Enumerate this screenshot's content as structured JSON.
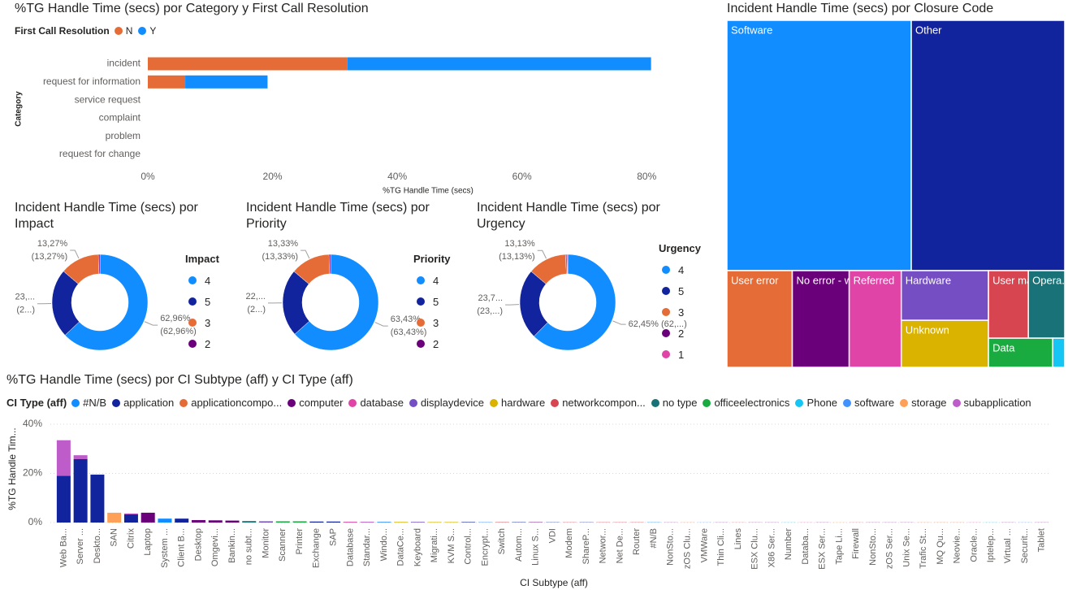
{
  "chart_data": [
    {
      "type": "bar",
      "title": "%TG Handle Time (secs) por Category y First Call Resolution",
      "legend_title": "First Call Resolution",
      "categories": [
        "incident",
        "request for information",
        "service request",
        "complaint",
        "problem",
        "request for change"
      ],
      "series": [
        {
          "name": "N",
          "color": "#e66c37",
          "values": [
            32.0,
            6.0,
            0,
            0,
            0,
            0
          ]
        },
        {
          "name": "Y",
          "color": "#118dff",
          "values": [
            48.7,
            13.2,
            0,
            0,
            0,
            0
          ]
        }
      ],
      "xlim": [
        0,
        87
      ],
      "xticks": [
        {
          "value": 0,
          "label": "0%"
        },
        {
          "value": 20,
          "label": "20%"
        },
        {
          "value": 40,
          "label": "40%"
        },
        {
          "value": 60,
          "label": "60%"
        },
        {
          "value": 80,
          "label": "80%"
        }
      ],
      "x_label": "%TG Handle Time (secs)",
      "y_label": "Category"
    },
    {
      "type": "treemap",
      "title": "Incident Handle Time (secs) por Closure Code",
      "categories": [
        "Software",
        "Other",
        "User error",
        "No error - works as d...",
        "Referred",
        "Hardware",
        "Unknown",
        "User manu...",
        "Opera...",
        "Data",
        null
      ],
      "values": [
        39.4,
        32.8,
        5.4,
        4.7,
        4.3,
        3.7,
        3.5,
        2.3,
        2.1,
        1.6,
        0.3
      ],
      "colors": [
        "#118dff",
        "#12239e",
        "#e66c37",
        "#6b007b",
        "#e044a7",
        "#744ec2",
        "#d9b300",
        "#d64550",
        "#197278",
        "#1aab40",
        "#15c6f4"
      ]
    },
    {
      "type": "donut",
      "title": "Incident Handle Time (secs) por Impact",
      "legend_title": "Impact",
      "categories": [
        "4",
        "5",
        "3",
        "2"
      ],
      "values": [
        62.96,
        23.27,
        13.27,
        0.5
      ],
      "value_labels": [
        "62,96%",
        "23,...",
        "13,27%",
        null
      ],
      "value_labels_2": [
        "(62,96%)",
        "(2...)",
        "(13,27%)",
        null
      ],
      "colors": [
        "#118dff",
        "#12239e",
        "#e66c37",
        "#6b007b"
      ]
    },
    {
      "type": "donut",
      "title": "Incident Handle Time (secs) por Priority",
      "legend_title": "Priority",
      "categories": [
        "4",
        "5",
        "3",
        "2"
      ],
      "values": [
        63.43,
        22.74,
        13.33,
        0.5
      ],
      "value_labels": [
        "63,43%",
        "22,...",
        "13,33%",
        null
      ],
      "value_labels_2": [
        "(63,43%)",
        "(2...)",
        "(13,33%)",
        null
      ],
      "colors": [
        "#118dff",
        "#12239e",
        "#e66c37",
        "#6b007b"
      ]
    },
    {
      "type": "donut",
      "title": "Incident Handle Time (secs) por Urgency",
      "legend_title": "Urgency",
      "categories": [
        "4",
        "5",
        "3",
        "2",
        "1"
      ],
      "values": [
        62.45,
        23.72,
        13.13,
        0.4,
        0.3
      ],
      "value_labels": [
        "62,45% (62,...)",
        "23,7...",
        "13,13%",
        null,
        null
      ],
      "value_labels_2": [
        null,
        "(23,...)",
        "(13,13%)",
        null,
        null
      ],
      "colors": [
        "#118dff",
        "#12239e",
        "#e66c37",
        "#6b007b",
        "#e044a7"
      ]
    },
    {
      "type": "column",
      "title": "%TG Handle Time (secs) por CI Subtype (aff) y CI Type (aff)",
      "legend_title": "CI Type (aff)",
      "categories": [
        "Web Ba...",
        "Server ...",
        "Deskto...",
        "SAN",
        "Citrix",
        "Laptop",
        "System ...",
        "Client B...",
        "Desktop",
        "Omgevi...",
        "Bankin...",
        "no subt...",
        "Monitor",
        "Scanner",
        "Printer",
        "Exchange",
        "SAP",
        "Database",
        "Standar...",
        "Windo...",
        "DataCe...",
        "Keyboard",
        "Migrati...",
        "KVM S...",
        "Control...",
        "Encrypt...",
        "Switch",
        "Autom...",
        "Linux S...",
        "VDI",
        "Modem",
        "ShareP...",
        "Networ...",
        "Net De...",
        "Router",
        "#N/B",
        "NonSto...",
        "zOS Clu...",
        "VMWare",
        "Thin Cli...",
        "Lines",
        "ESX Clu...",
        "X86 Ser...",
        "Number",
        "Databa...",
        "ESX Ser...",
        "Tape Li...",
        "Firewall",
        "NonSto...",
        "zOS Ser...",
        "Unix Se...",
        "Trafic St...",
        "MQ Qu...",
        "Neovie...",
        "Oracle...",
        "Iptelep...",
        "Virtual ...",
        "Securit...",
        "Tablet"
      ],
      "series": [
        {
          "name": "#N/B",
          "color": "#118dff",
          "values": [
            0,
            0,
            0,
            0,
            0,
            0,
            1.6,
            0,
            0,
            0,
            0,
            0,
            0,
            0,
            0,
            0,
            0,
            0,
            0,
            0,
            0,
            0,
            0,
            0,
            0,
            0,
            0,
            0,
            0,
            0,
            0,
            0,
            0,
            0,
            0,
            0.1,
            0,
            0,
            0,
            0,
            0,
            0,
            0,
            0,
            0,
            0,
            0,
            0,
            0,
            0,
            0,
            0,
            0,
            0,
            0,
            0,
            0,
            0,
            0
          ]
        },
        {
          "name": "application",
          "color": "#12239e",
          "values": [
            19,
            25.8,
            19.5,
            0,
            3.3,
            0,
            0,
            1.6,
            0,
            0,
            0,
            0,
            0,
            0,
            0,
            0.4,
            0.4,
            0,
            0,
            0,
            0,
            0,
            0,
            0,
            0.2,
            0,
            0,
            0.15,
            0,
            0.1,
            0,
            0.1,
            0,
            0,
            0,
            0,
            0,
            0,
            0,
            0,
            0,
            0,
            0,
            0,
            0,
            0,
            0,
            0,
            0,
            0,
            0,
            0,
            0,
            0,
            0,
            0,
            0,
            0,
            0
          ]
        },
        {
          "name": "applicationcompo...",
          "color": "#e66c37",
          "values": [
            0,
            0,
            0,
            0,
            0,
            0,
            0,
            0,
            0,
            0,
            0,
            0,
            0,
            0,
            0,
            0,
            0,
            0,
            0,
            0,
            0,
            0,
            0,
            0,
            0,
            0,
            0,
            0,
            0,
            0,
            0,
            0,
            0,
            0,
            0,
            0,
            0,
            0.05,
            0,
            0,
            0,
            0,
            0,
            0,
            0,
            0,
            0,
            0,
            0,
            0,
            0,
            0.05,
            0.05,
            0.05,
            0,
            0,
            0,
            0,
            0
          ]
        },
        {
          "name": "computer",
          "color": "#6b007b",
          "values": [
            0,
            0,
            0,
            0,
            0,
            4,
            0,
            0,
            1,
            0.9,
            0.8,
            0,
            0,
            0,
            0,
            0,
            0,
            0,
            0,
            0,
            0,
            0,
            0,
            0,
            0,
            0,
            0,
            0,
            0.15,
            0,
            0,
            0,
            0,
            0,
            0,
            0,
            0.05,
            0,
            0,
            0.05,
            0,
            0.05,
            0.05,
            0,
            0,
            0.05,
            0,
            0,
            0.05,
            0.05,
            0.05,
            0,
            0,
            0,
            0,
            0,
            0.05,
            0,
            0.05
          ]
        },
        {
          "name": "database",
          "color": "#e044a7",
          "values": [
            0,
            0,
            0,
            0,
            0,
            0,
            0,
            0,
            0,
            0,
            0,
            0,
            0,
            0,
            0,
            0,
            0,
            0.3,
            0,
            0,
            0,
            0,
            0,
            0,
            0,
            0,
            0,
            0,
            0,
            0,
            0,
            0,
            0,
            0,
            0,
            0,
            0,
            0,
            0,
            0,
            0,
            0,
            0,
            0,
            0.05,
            0,
            0,
            0,
            0,
            0,
            0,
            0,
            0,
            0,
            0.05,
            0,
            0,
            0,
            0
          ]
        },
        {
          "name": "displaydevice",
          "color": "#744ec2",
          "values": [
            0,
            0,
            0,
            0,
            0,
            0,
            0,
            0,
            0,
            0,
            0,
            0,
            0.5,
            0,
            0,
            0,
            0,
            0,
            0,
            0,
            0,
            0.25,
            0,
            0,
            0,
            0,
            0,
            0,
            0,
            0,
            0,
            0,
            0,
            0,
            0,
            0,
            0,
            0,
            0,
            0,
            0,
            0,
            0,
            0,
            0,
            0,
            0,
            0,
            0,
            0,
            0,
            0,
            0,
            0,
            0,
            0,
            0,
            0,
            0
          ]
        },
        {
          "name": "hardware",
          "color": "#d9b300",
          "values": [
            0,
            0,
            0,
            0,
            0,
            0,
            0,
            0,
            0,
            0,
            0,
            0,
            0,
            0,
            0,
            0,
            0,
            0,
            0,
            0,
            0.25,
            0,
            0.2,
            0.2,
            0,
            0,
            0,
            0,
            0,
            0,
            0,
            0,
            0,
            0,
            0,
            0,
            0,
            0,
            0,
            0,
            0,
            0,
            0,
            0,
            0,
            0,
            0,
            0,
            0,
            0,
            0,
            0,
            0,
            0,
            0,
            0,
            0,
            0,
            0
          ]
        },
        {
          "name": "networkcompon...",
          "color": "#d64550",
          "values": [
            0,
            0,
            0,
            0,
            0,
            0,
            0,
            0,
            0,
            0,
            0,
            0,
            0,
            0,
            0,
            0,
            0,
            0,
            0,
            0,
            0,
            0,
            0,
            0,
            0,
            0,
            0.15,
            0,
            0,
            0,
            0.1,
            0,
            0.1,
            0.1,
            0.1,
            0,
            0,
            0,
            0,
            0,
            0.05,
            0,
            0,
            0,
            0,
            0,
            0,
            0.05,
            0,
            0,
            0,
            0,
            0,
            0,
            0,
            0,
            0,
            0,
            0
          ]
        },
        {
          "name": "no type",
          "color": "#197278",
          "values": [
            0,
            0,
            0,
            0,
            0,
            0,
            0,
            0,
            0,
            0,
            0,
            0.6,
            0,
            0,
            0,
            0,
            0,
            0,
            0,
            0,
            0,
            0,
            0,
            0,
            0,
            0,
            0,
            0,
            0,
            0,
            0,
            0,
            0,
            0,
            0,
            0,
            0,
            0,
            0,
            0,
            0,
            0,
            0,
            0,
            0,
            0,
            0,
            0,
            0,
            0,
            0,
            0,
            0,
            0,
            0,
            0,
            0,
            0,
            0
          ]
        },
        {
          "name": "officeelectronics",
          "color": "#1aab40",
          "values": [
            0,
            0,
            0,
            0,
            0,
            0,
            0,
            0,
            0,
            0,
            0,
            0,
            0,
            0.5,
            0.5,
            0,
            0,
            0,
            0,
            0,
            0,
            0,
            0,
            0,
            0,
            0,
            0,
            0,
            0,
            0,
            0,
            0,
            0,
            0,
            0,
            0,
            0,
            0,
            0,
            0,
            0,
            0,
            0,
            0,
            0,
            0,
            0,
            0,
            0,
            0,
            0,
            0,
            0,
            0,
            0,
            0,
            0,
            0,
            0
          ]
        },
        {
          "name": "Phone",
          "color": "#15c6f4",
          "values": [
            0,
            0,
            0,
            0,
            0,
            0,
            0,
            0,
            0,
            0,
            0,
            0,
            0,
            0,
            0,
            0,
            0,
            0,
            0,
            0,
            0,
            0,
            0,
            0,
            0,
            0,
            0,
            0,
            0,
            0,
            0,
            0,
            0,
            0,
            0,
            0,
            0,
            0,
            0,
            0,
            0,
            0,
            0,
            0.05,
            0,
            0,
            0,
            0,
            0,
            0,
            0,
            0,
            0,
            0,
            0,
            0.05,
            0,
            0,
            0
          ]
        },
        {
          "name": "software",
          "color": "#4092ff",
          "values": [
            0,
            0,
            0,
            0,
            0,
            0,
            0,
            0,
            0,
            0,
            0,
            0,
            0,
            0,
            0,
            0,
            0,
            0,
            0,
            0.3,
            0,
            0,
            0,
            0,
            0,
            0.15,
            0,
            0,
            0,
            0,
            0,
            0,
            0,
            0,
            0,
            0,
            0,
            0,
            0.05,
            0,
            0,
            0,
            0,
            0,
            0,
            0,
            0,
            0,
            0,
            0,
            0,
            0,
            0,
            0,
            0,
            0,
            0,
            0.05,
            0
          ]
        },
        {
          "name": "storage",
          "color": "#ffa058",
          "values": [
            0,
            0,
            0,
            4,
            0,
            0,
            0,
            0,
            0,
            0,
            0,
            0,
            0,
            0,
            0,
            0,
            0,
            0,
            0,
            0,
            0,
            0,
            0,
            0,
            0,
            0,
            0,
            0,
            0,
            0,
            0,
            0,
            0,
            0,
            0,
            0,
            0,
            0,
            0,
            0,
            0,
            0,
            0,
            0,
            0,
            0,
            0.05,
            0,
            0,
            0,
            0,
            0,
            0,
            0,
            0,
            0,
            0,
            0,
            0
          ]
        },
        {
          "name": "subapplication",
          "color": "#be5dc9",
          "values": [
            14.5,
            1.6,
            0,
            0,
            0.4,
            0,
            0,
            0,
            0,
            0,
            0,
            0,
            0,
            0,
            0,
            0,
            0,
            0,
            0.3,
            0,
            0,
            0,
            0,
            0,
            0,
            0,
            0,
            0,
            0,
            0,
            0,
            0,
            0,
            0,
            0,
            0,
            0,
            0,
            0,
            0,
            0,
            0,
            0,
            0,
            0,
            0,
            0,
            0,
            0,
            0,
            0,
            0,
            0,
            0,
            0,
            0,
            0,
            0,
            0
          ]
        }
      ],
      "ylim": [
        0,
        42
      ],
      "yticks": [
        {
          "value": 0,
          "label": "0%"
        },
        {
          "value": 20,
          "label": "20%"
        },
        {
          "value": 40,
          "label": "40%"
        }
      ],
      "x_label": "CI Subtype (aff)",
      "y_label": "%TG Handle Tim...",
      "grid": true
    }
  ]
}
